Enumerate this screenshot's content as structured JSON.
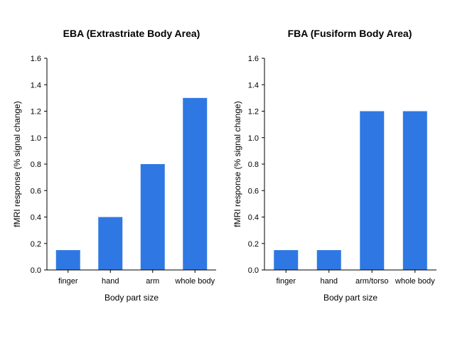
{
  "colors": {
    "bar": "#2f78e3",
    "axis": "#000000",
    "background": "#ffffff"
  },
  "chart_data": [
    {
      "type": "bar",
      "title": "EBA (Extrastriate Body Area)",
      "xlabel": "Body part size",
      "ylabel": "fMRI response (% signal change)",
      "categories": [
        "finger",
        "hand",
        "arm",
        "whole body"
      ],
      "values": [
        0.15,
        0.4,
        0.8,
        1.3
      ],
      "ylim": [
        0,
        1.6
      ],
      "yticks": [
        "0.0",
        "0.2",
        "0.4",
        "0.6",
        "0.8",
        "1.0",
        "1.2",
        "1.4",
        "1.6"
      ],
      "grid": false,
      "legend": "none"
    },
    {
      "type": "bar",
      "title": "FBA (Fusiform Body Area)",
      "xlabel": "Body part size",
      "ylabel": "fMRI response (% signal change)",
      "categories": [
        "finger",
        "hand",
        "arm/torso",
        "whole body"
      ],
      "values": [
        0.15,
        0.15,
        1.2,
        1.2
      ],
      "ylim": [
        0,
        1.6
      ],
      "yticks": [
        "0.0",
        "0.2",
        "0.4",
        "0.6",
        "0.8",
        "1.0",
        "1.2",
        "1.4",
        "1.6"
      ],
      "grid": false,
      "legend": "none"
    }
  ]
}
